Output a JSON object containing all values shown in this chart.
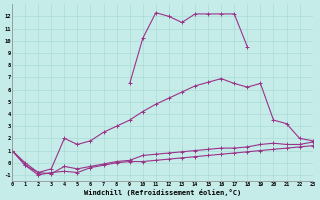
{
  "xlabel": "Windchill (Refroidissement éolien,°C)",
  "background_color": "#c5ece8",
  "grid_color": "#aaddd8",
  "line_color": "#993388",
  "x_values": [
    0,
    1,
    2,
    3,
    4,
    5,
    6,
    7,
    8,
    9,
    10,
    11,
    12,
    13,
    14,
    15,
    16,
    17,
    18,
    19,
    20,
    21,
    22,
    23
  ],
  "line1": [
    1.0,
    -0.2,
    -1.0,
    -0.8,
    -0.7,
    -0.8,
    -0.4,
    -0.2,
    0.0,
    0.1,
    0.1,
    0.2,
    0.3,
    0.4,
    0.5,
    0.6,
    0.7,
    0.8,
    0.9,
    1.0,
    1.1,
    1.2,
    1.3,
    1.4
  ],
  "line2": [
    1.0,
    -0.2,
    -0.8,
    -0.9,
    -0.3,
    -0.5,
    -0.3,
    -0.1,
    0.1,
    0.2,
    0.6,
    0.7,
    0.8,
    0.9,
    1.0,
    1.1,
    1.2,
    1.2,
    1.3,
    1.5,
    1.6,
    1.5,
    1.5,
    1.7
  ],
  "line3": [
    1.0,
    0.0,
    -0.8,
    -0.5,
    2.0,
    1.5,
    1.8,
    2.5,
    3.0,
    3.5,
    4.2,
    4.8,
    5.3,
    5.8,
    6.3,
    6.6,
    6.9,
    6.5,
    6.2,
    6.5,
    3.5,
    3.2,
    2.0,
    1.8
  ],
  "line4": [
    1.0,
    null,
    null,
    null,
    null,
    null,
    null,
    null,
    null,
    6.5,
    10.2,
    12.3,
    12.0,
    11.5,
    12.2,
    12.2,
    12.2,
    12.2,
    9.5,
    null,
    null,
    null,
    null,
    null
  ],
  "ylim": [
    -1.5,
    13.0
  ],
  "xlim": [
    0,
    23
  ],
  "yticks": [
    -1,
    0,
    1,
    2,
    3,
    4,
    5,
    6,
    7,
    8,
    9,
    10,
    11,
    12
  ],
  "xticks": [
    0,
    1,
    2,
    3,
    4,
    5,
    6,
    7,
    8,
    9,
    10,
    11,
    12,
    13,
    14,
    15,
    16,
    17,
    18,
    19,
    20,
    21,
    22,
    23
  ]
}
